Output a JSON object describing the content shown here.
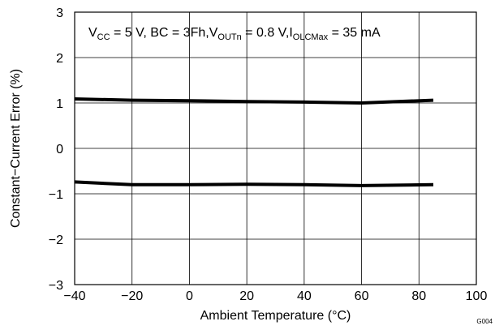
{
  "chart_data": {
    "type": "line",
    "xlabel": "Ambient Temperature (°C)",
    "ylabel": "Constant−Current Error (%)",
    "xlim": [
      -40,
      100
    ],
    "ylim": [
      -3,
      3
    ],
    "x_ticks": [
      -40,
      -20,
      0,
      20,
      40,
      60,
      80,
      100
    ],
    "y_ticks": [
      -3,
      -2,
      -1,
      0,
      1,
      2,
      3
    ],
    "x_tick_labels": [
      "−40",
      "−20",
      "0",
      "20",
      "40",
      "60",
      "80",
      "100"
    ],
    "y_tick_labels": [
      "−3",
      "−2",
      "−1",
      "0",
      "1",
      "2",
      "3"
    ],
    "grid": true,
    "annotation": {
      "vcc": {
        "base": "V",
        "sub": "CC",
        "rest": " = 5 V, BC = 3Fh,"
      },
      "vout": {
        "base": "V",
        "sub": "OUTn",
        "rest": " = 0.8 V,"
      },
      "iolc": {
        "base": "I",
        "sub": "OLCMax",
        "rest": " = 35 mA"
      }
    },
    "figure_id": "G004",
    "series": [
      {
        "x": [
          -40,
          -20,
          0,
          20,
          40,
          60,
          85
        ],
        "values": [
          1.09,
          1.06,
          1.05,
          1.03,
          1.02,
          1.0,
          1.06
        ]
      },
      {
        "x": [
          -40,
          -20,
          0,
          20,
          40,
          60,
          85
        ],
        "values": [
          -0.74,
          -0.8,
          -0.8,
          -0.79,
          -0.8,
          -0.82,
          -0.8
        ]
      }
    ],
    "colors": {
      "line": "#000000",
      "grid": "#000000"
    }
  }
}
